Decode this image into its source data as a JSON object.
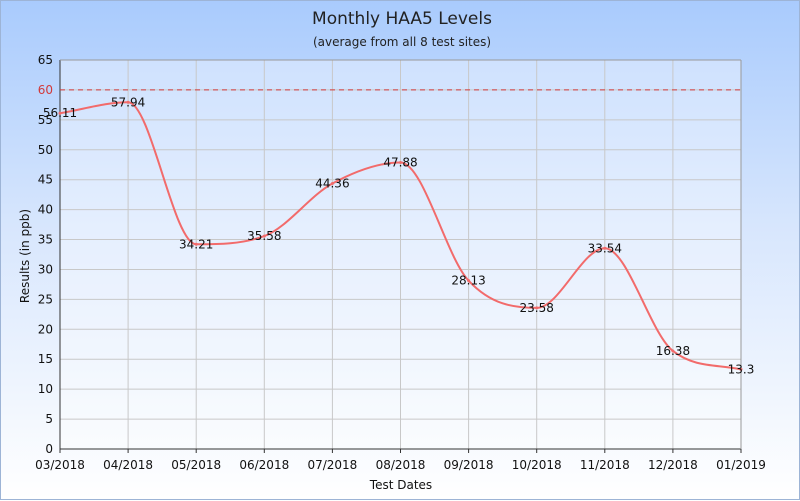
{
  "chart_data": {
    "type": "line",
    "title": "Monthly HAA5 Levels",
    "subtitle": "(average from all 8 test sites)",
    "xlabel": "Test Dates",
    "ylabel": "Results (in ppb)",
    "x_ticks": [
      "03/2018",
      "04/2018",
      "05/2018",
      "06/2018",
      "07/2018",
      "08/2018",
      "09/2018",
      "10/2018",
      "11/2018",
      "12/2018",
      "01/2019"
    ],
    "y_ticks": [
      0,
      5,
      10,
      15,
      20,
      25,
      30,
      35,
      40,
      45,
      50,
      55,
      60,
      65
    ],
    "ylim": [
      0,
      65
    ],
    "grid": true,
    "smooth": true,
    "series": [
      {
        "color": "#f26b6b",
        "points": [
          {
            "x": 0,
            "y": 56.11,
            "label": "56.11"
          },
          {
            "x": 1,
            "y": 57.94,
            "label": "57.94"
          },
          {
            "x": 2,
            "y": 34.21,
            "label": "34.21"
          },
          {
            "x": 3,
            "y": 35.58,
            "label": "35.58"
          },
          {
            "x": 4,
            "y": 44.36,
            "label": "44.36"
          },
          {
            "x": 5,
            "y": 47.88,
            "label": "47.88"
          },
          {
            "x": 6,
            "y": 28.13,
            "label": "28.13"
          },
          {
            "x": 7,
            "y": 23.58,
            "label": "23.58"
          },
          {
            "x": 8,
            "y": 33.54,
            "label": "33.54"
          },
          {
            "x": 9,
            "y": 16.38,
            "label": "16.38"
          },
          {
            "x": 10,
            "y": 13.3,
            "label": "13.3"
          }
        ]
      }
    ],
    "reference_line": {
      "value": 60,
      "color": "#d23a3a",
      "style": "dashed"
    }
  }
}
